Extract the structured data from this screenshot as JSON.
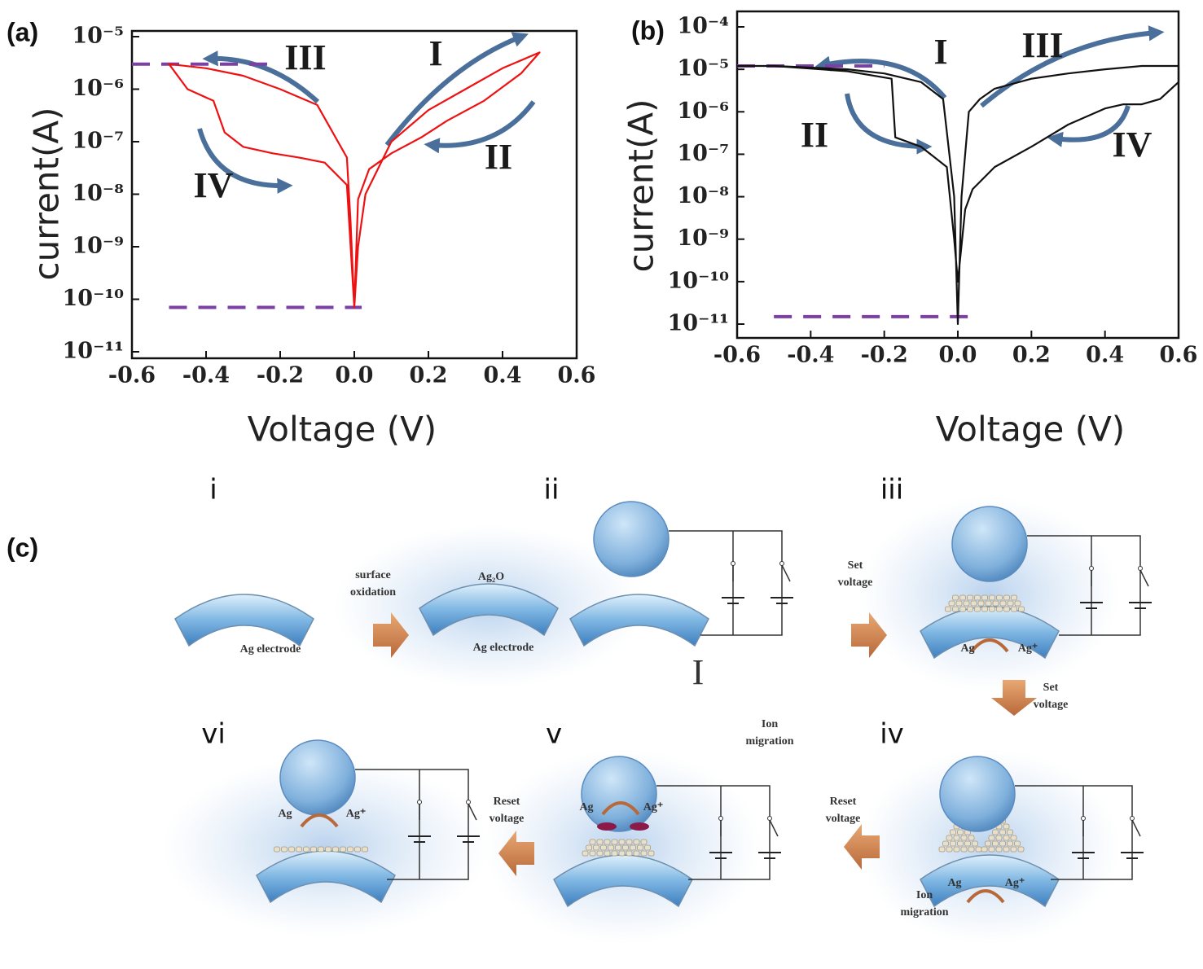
{
  "chart_data": [
    {
      "type": "line",
      "label": "(a)",
      "xlabel": "Voltage (V)",
      "ylabel": "current(A)",
      "ylog": true,
      "xlim": [
        -0.6,
        0.6
      ],
      "xticks": [
        -0.6,
        -0.4,
        -0.2,
        {
          "value": 0,
          "label": "0.0"
        },
        0.2,
        0.4,
        0.6
      ],
      "ylim": [
        1e-11,
        1e-05
      ],
      "yticks": [
        {
          "value": 1e-11,
          "label": "10⁻¹¹"
        },
        {
          "value": 1e-10,
          "label": "10⁻¹⁰"
        },
        {
          "value": 1e-09,
          "label": "10⁻⁹"
        },
        {
          "value": 1e-08,
          "label": "10⁻⁸"
        },
        {
          "value": 1e-07,
          "label": "10⁻⁷"
        },
        {
          "value": 1e-06,
          "label": "10⁻⁶"
        },
        {
          "value": 1e-05,
          "label": "10⁻⁵"
        }
      ],
      "x": [
        0,
        0.01,
        0.03,
        0.1,
        0.2,
        0.3,
        0.4,
        0.5,
        0.45,
        0.35,
        0.25,
        0.18,
        0.1,
        0.04,
        0.01,
        0,
        -0.01,
        -0.02,
        -0.1,
        -0.2,
        -0.3,
        -0.4,
        -0.5,
        -0.45,
        -0.38,
        -0.35,
        -0.3,
        -0.22,
        -0.15,
        -0.08,
        -0.02,
        0
      ],
      "series": [
        {
          "color": "#ee1111",
          "values": [
            7e-11,
            1e-09,
            1e-08,
            1e-07,
            4e-07,
            1e-06,
            2.5e-06,
            5e-06,
            2e-06,
            6e-07,
            2.5e-07,
            1.2e-07,
            6e-08,
            3e-08,
            8e-09,
            7e-11,
            3e-09,
            5e-08,
            5e-07,
            1e-06,
            1.8e-06,
            2.5e-06,
            3e-06,
            1e-06,
            6e-07,
            1.5e-07,
            8e-08,
            6e-08,
            5e-08,
            4e-08,
            1.5e-08,
            7e-11
          ]
        }
      ],
      "reference_lines": [
        {
          "y": 3e-06,
          "x": [
            -0.6,
            -0.21
          ]
        },
        {
          "y": 7e-11,
          "x": [
            -0.5,
            0.02
          ]
        }
      ],
      "reference_color": "#7b3fa6",
      "annotations": [
        "III",
        "I",
        "II",
        "IV"
      ]
    },
    {
      "type": "line",
      "label": "(b)",
      "xlabel": "Voltage (V)",
      "ylabel": "current(A)",
      "ylog": true,
      "xlim": [
        -0.6,
        0.6
      ],
      "xticks": [
        -0.6,
        -0.4,
        -0.2,
        {
          "value": 0,
          "label": "0.0"
        },
        0.2,
        0.4,
        0.6
      ],
      "ylim": [
        1e-11,
        0.0001
      ],
      "yticks": [
        {
          "value": 1e-11,
          "label": "10⁻¹¹"
        },
        {
          "value": 1e-10,
          "label": "10⁻¹⁰"
        },
        {
          "value": 1e-09,
          "label": "10⁻⁹"
        },
        {
          "value": 1e-08,
          "label": "10⁻⁸"
        },
        {
          "value": 1e-07,
          "label": "10⁻⁷"
        },
        {
          "value": 1e-06,
          "label": "10⁻⁶"
        },
        {
          "value": 1e-05,
          "label": "10⁻⁵"
        },
        {
          "value": 0.0001,
          "label": "10⁻⁴"
        }
      ],
      "x": [
        -0.6,
        -0.5,
        -0.4,
        -0.3,
        -0.2,
        -0.1,
        -0.04,
        -0.01,
        0,
        0.01,
        0.03,
        0.06,
        0.1,
        0.2,
        0.3,
        0.4,
        0.5,
        0.6,
        0.6,
        0.55,
        0.5,
        0.45,
        0.4,
        0.3,
        0.2,
        0.1,
        0.04,
        0.02,
        0,
        -0.01,
        -0.03,
        -0.1,
        -0.17,
        -0.18,
        -0.3,
        -0.5,
        -0.6
      ],
      "series": [
        {
          "color": "#111111",
          "values": [
            1.2e-05,
            1.2e-05,
            1.1e-05,
            1e-05,
            8e-06,
            5e-06,
            2e-06,
            1e-08,
            1e-11,
            1e-08,
            1e-06,
            2e-06,
            3.5e-06,
            6e-06,
            8e-06,
            1e-05,
            1.2e-05,
            1.2e-05,
            5e-06,
            2e-06,
            1.5e-06,
            1.5e-06,
            1.2e-06,
            5e-07,
            1.5e-07,
            5e-08,
            1.5e-08,
            5e-09,
            1e-10,
            1e-09,
            5e-08,
            1.5e-07,
            2.5e-07,
            6e-06,
            9e-06,
            1.2e-05,
            1.2e-05
          ]
        }
      ],
      "reference_lines": [
        {
          "y": 1.2e-05,
          "x": [
            -0.6,
            -0.2
          ]
        },
        {
          "y": 1.5e-11,
          "x": [
            -0.5,
            0.05
          ]
        }
      ],
      "reference_color": "#7b3fa6",
      "annotations": [
        "I",
        "III",
        "II",
        "IV"
      ]
    }
  ],
  "diagram": {
    "label": "(c)",
    "panels": [
      "i",
      "ii",
      "iii",
      "iv",
      "v",
      "vi"
    ],
    "captions": [
      [
        "surface",
        "oxidation"
      ],
      [
        "Ag₂O"
      ],
      [
        "Ag electrode"
      ],
      [
        "Ag electrode"
      ],
      [
        "I"
      ],
      [
        "Set",
        "voltage"
      ],
      [
        "Ag"
      ],
      [
        "Ag⁺"
      ],
      [
        "Set",
        "voltage"
      ],
      [
        "Ion",
        "migration"
      ],
      [
        "Reset",
        "voltage"
      ],
      [
        "Ag"
      ],
      [
        "Ag⁺"
      ],
      [
        "Ion",
        "migration"
      ],
      [
        "Ag"
      ],
      [
        "Ag⁺"
      ],
      [
        "Reset",
        "voltage"
      ],
      [
        "Ag"
      ],
      [
        "Ag⁺"
      ]
    ]
  }
}
